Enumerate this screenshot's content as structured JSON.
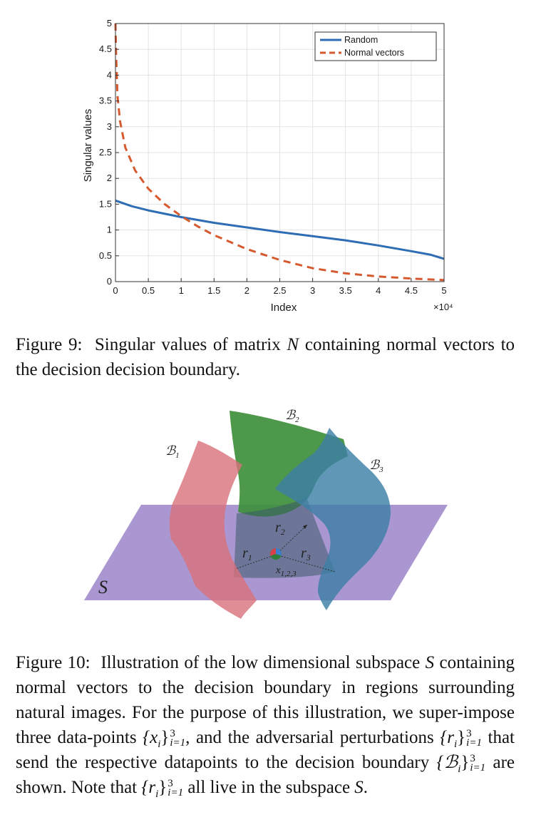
{
  "chart_data": {
    "type": "line",
    "xlabel": "Index",
    "ylabel": "Singular values",
    "x_multiplier": "×10⁴",
    "xlim": [
      0,
      50000
    ],
    "ylim": [
      0,
      5
    ],
    "xticks": [
      0,
      5000,
      10000,
      15000,
      20000,
      25000,
      30000,
      35000,
      40000,
      45000,
      50000
    ],
    "xtick_labels": [
      "0",
      "0.5",
      "1",
      "1.5",
      "2",
      "2.5",
      "3",
      "3.5",
      "4",
      "4.5",
      "5"
    ],
    "yticks": [
      0,
      0.5,
      1,
      1.5,
      2,
      2.5,
      3,
      3.5,
      4,
      4.5,
      5
    ],
    "ytick_labels": [
      "0",
      "0.5",
      "1",
      "1.5",
      "2",
      "2.5",
      "3",
      "3.5",
      "4",
      "4.5",
      "5"
    ],
    "grid": true,
    "legend_position": "top-right",
    "series": [
      {
        "name": "Random",
        "color": "#2e6db4",
        "style": "solid",
        "x": [
          0,
          2500,
          5000,
          10000,
          15000,
          20000,
          25000,
          30000,
          35000,
          40000,
          45000,
          48000,
          50000
        ],
        "y": [
          1.57,
          1.46,
          1.38,
          1.25,
          1.14,
          1.05,
          0.96,
          0.88,
          0.8,
          0.7,
          0.59,
          0.52,
          0.44
        ]
      },
      {
        "name": "Normal vectors",
        "color": "#d65a2f",
        "style": "dashed",
        "x": [
          0,
          100,
          300,
          700,
          1500,
          3000,
          5000,
          7500,
          10000,
          12500,
          15000,
          20000,
          25000,
          30000,
          35000,
          40000,
          45000,
          50000
        ],
        "y": [
          5.0,
          4.4,
          3.6,
          3.1,
          2.6,
          2.15,
          1.8,
          1.5,
          1.27,
          1.07,
          0.9,
          0.63,
          0.42,
          0.26,
          0.16,
          0.1,
          0.06,
          0.03
        ]
      }
    ]
  },
  "figure9": {
    "label": "Figure 9:",
    "text_a": "Singular values of matrix",
    "matrix_symbol": "N",
    "text_b": "containing normal vectors to the decision decision boundary."
  },
  "illustration": {
    "subspace_label": "S",
    "boundary_labels": [
      "ℬ",
      "ℬ",
      "ℬ"
    ],
    "boundary_subscripts": [
      "1",
      "2",
      "3"
    ],
    "perturbation_labels": [
      "r",
      "r",
      "r"
    ],
    "perturbation_subscripts": [
      "1",
      "2",
      "3"
    ],
    "point_label": "x",
    "point_subscript": "1,2,3",
    "colors": {
      "plane": "#9b85c9",
      "surface_1": "#d9707a",
      "surface_2": "#3f8f3c",
      "surface_3": "#3d7fa6"
    }
  },
  "figure10": {
    "label": "Figure 10:",
    "s1": "Illustration of the low dimensional subspace",
    "subspace": "S",
    "s2": "containing normal vectors to the decision boundary in regions surrounding natural images. For the purpose of this illustration, we super-impose three data-points",
    "set_x": "{x",
    "i_sub": "i",
    "set_close": "}",
    "sup3": "3",
    "sub_i1": "i=1",
    "s3": ", and the adversarial perturbations",
    "set_r": "{r",
    "s4": "that send the respective datapoints to the decision boundary",
    "set_b": "{ℬ",
    "s5": "are shown. Note that",
    "s6": "all live in the subspace",
    "s7": "."
  }
}
